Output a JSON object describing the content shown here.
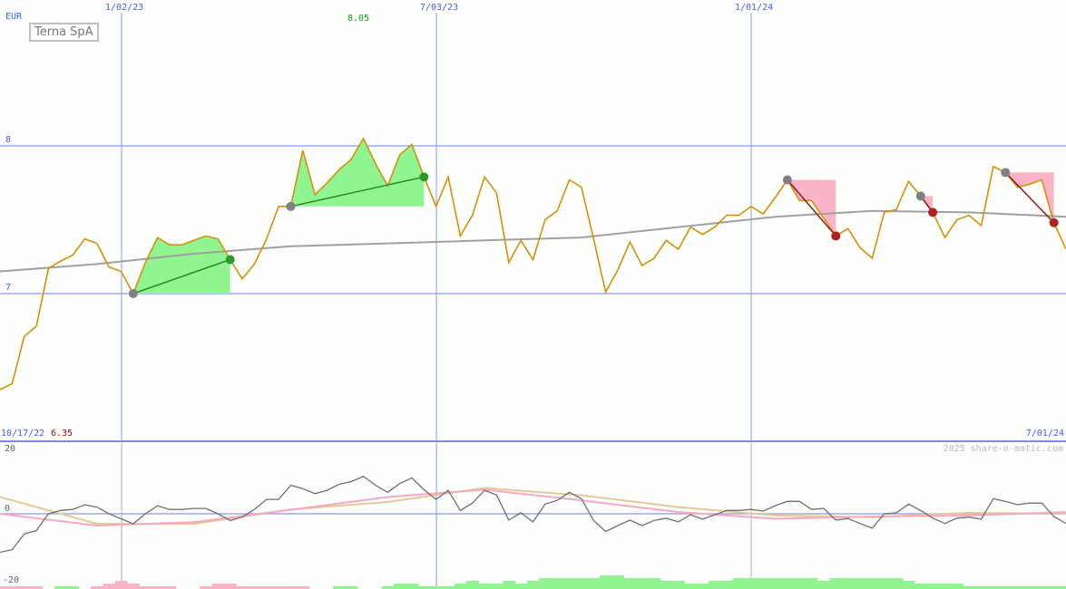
{
  "chart_data": {
    "type": "line",
    "title": "Terna SpA",
    "currency": "EUR",
    "start_date": "10/17/22",
    "end_date": "7/01/24",
    "x_tick_labels": [
      "1/02/23",
      "7/03/23",
      "1/01/24"
    ],
    "x_tick_index": [
      11,
      37,
      63
    ],
    "y_tick_labels": [
      "8",
      "7"
    ],
    "ylim": [
      6.3,
      8.2
    ],
    "max_label": "8.05",
    "min_label": "6.35",
    "copyright": "2025 share-o-matic.com",
    "price": [
      6.35,
      6.39,
      6.71,
      6.78,
      7.17,
      7.22,
      7.26,
      7.37,
      7.34,
      7.18,
      7.15,
      7.0,
      7.21,
      7.38,
      7.33,
      7.33,
      7.36,
      7.39,
      7.37,
      7.23,
      7.1,
      7.2,
      7.37,
      7.59,
      7.59,
      7.97,
      7.67,
      7.75,
      7.84,
      7.91,
      8.05,
      7.88,
      7.73,
      7.94,
      8.01,
      7.79,
      7.59,
      7.79,
      7.39,
      7.53,
      7.79,
      7.68,
      7.21,
      7.36,
      7.23,
      7.5,
      7.56,
      7.77,
      7.72,
      7.37,
      7.01,
      7.16,
      7.35,
      7.19,
      7.24,
      7.36,
      7.3,
      7.45,
      7.4,
      7.45,
      7.53,
      7.53,
      7.59,
      7.54,
      7.65,
      7.77,
      7.63,
      7.63,
      7.51,
      7.39,
      7.44,
      7.31,
      7.24,
      7.55,
      7.57,
      7.76,
      7.66,
      7.55,
      7.38,
      7.5,
      7.53,
      7.46,
      7.86,
      7.82,
      7.72,
      7.74,
      7.77,
      7.48,
      7.3
    ],
    "moving_average_every_8_weeks": [
      7.15,
      7.2,
      7.27,
      7.32,
      7.34,
      7.36,
      7.38,
      7.45,
      7.52,
      7.56,
      7.55,
      7.52
    ],
    "trades": [
      {
        "type": "long",
        "entry": 11,
        "exit": 19
      },
      {
        "type": "long",
        "entry": 24,
        "exit": 35
      },
      {
        "type": "short",
        "entry": 65,
        "exit": 69
      },
      {
        "type": "short",
        "entry": 76,
        "exit": 77
      },
      {
        "type": "short",
        "entry": 83,
        "exit": 87
      }
    ],
    "oscillator": {
      "ylim": [
        -20,
        20
      ],
      "tick_labels": [
        "20",
        "0",
        "-20"
      ],
      "momentum": [
        -11.5,
        -10.7,
        -6,
        -5,
        0,
        1,
        1.3,
        2.7,
        2,
        0,
        -1.5,
        -3,
        0,
        2.4,
        1.3,
        1.3,
        1.6,
        1.6,
        0,
        -2,
        -1,
        1.3,
        4.3,
        4.3,
        8.5,
        7.5,
        6,
        7,
        8.8,
        9.6,
        11.2,
        8.5,
        6.4,
        9,
        10.7,
        7.2,
        4.3,
        7,
        1,
        3.2,
        7,
        5.6,
        -1.9,
        0.3,
        -2.4,
        2.9,
        4,
        6.4,
        4.5,
        -2,
        -5.3,
        -3.5,
        -1.9,
        -3.5,
        -2,
        -1.3,
        -2.4,
        -0.3,
        -1.6,
        -0.3,
        1,
        1,
        1.3,
        0.8,
        2.4,
        3.7,
        3.7,
        1.3,
        1.6,
        -1.9,
        -1.4,
        -2.9,
        -4.3,
        0,
        0.3,
        2.9,
        1,
        -1.3,
        -2.9,
        -1.3,
        -1,
        -1.6,
        4.5,
        3.7,
        2.7,
        3.2,
        3.2,
        -0.8,
        -2.9
      ],
      "pink_every_8_weeks": [
        0,
        -3.5,
        -2.5,
        1.2,
        5,
        7.2,
        4,
        0.5,
        -1.5,
        -0.8,
        -0.5,
        0.5
      ],
      "tan_every_8_weeks": [
        5,
        -3,
        -3,
        1.3,
        3.5,
        7.7,
        5.5,
        2,
        -0.5,
        -1,
        0.3,
        0
      ],
      "histogram": [
        -1,
        -1,
        -1,
        -1,
        0,
        1,
        1,
        0,
        -1,
        -2,
        -3,
        -2,
        -1,
        -1,
        -1,
        0,
        0,
        -1,
        -2,
        -2,
        -1,
        -1,
        -1,
        -1,
        -1,
        -1,
        0,
        0,
        1,
        1,
        0,
        0,
        1,
        2,
        2,
        1,
        1,
        1,
        2,
        3,
        2,
        2,
        3,
        2,
        3,
        4,
        4,
        4,
        4,
        4,
        5,
        5,
        4,
        4,
        4,
        3,
        3,
        2,
        2,
        3,
        3,
        4,
        4,
        4,
        4,
        4,
        4,
        4,
        3,
        4,
        4,
        4,
        4,
        4,
        4,
        3,
        2,
        2,
        2,
        2,
        1,
        1,
        1,
        1,
        1,
        1,
        1,
        1,
        1
      ]
    },
    "colors": {
      "price": "#d4900a",
      "ma": "#a0a0a0",
      "grid": "#8a99f2",
      "gain": "#90f590",
      "loss": "#f9b4c8",
      "buy_marker": "#808080",
      "sell_win": "#2a9a2a",
      "sell_loss": "#b02020",
      "momentum": "#707070",
      "pink": "#f6a8c0",
      "tan": "#e2c99a"
    }
  }
}
